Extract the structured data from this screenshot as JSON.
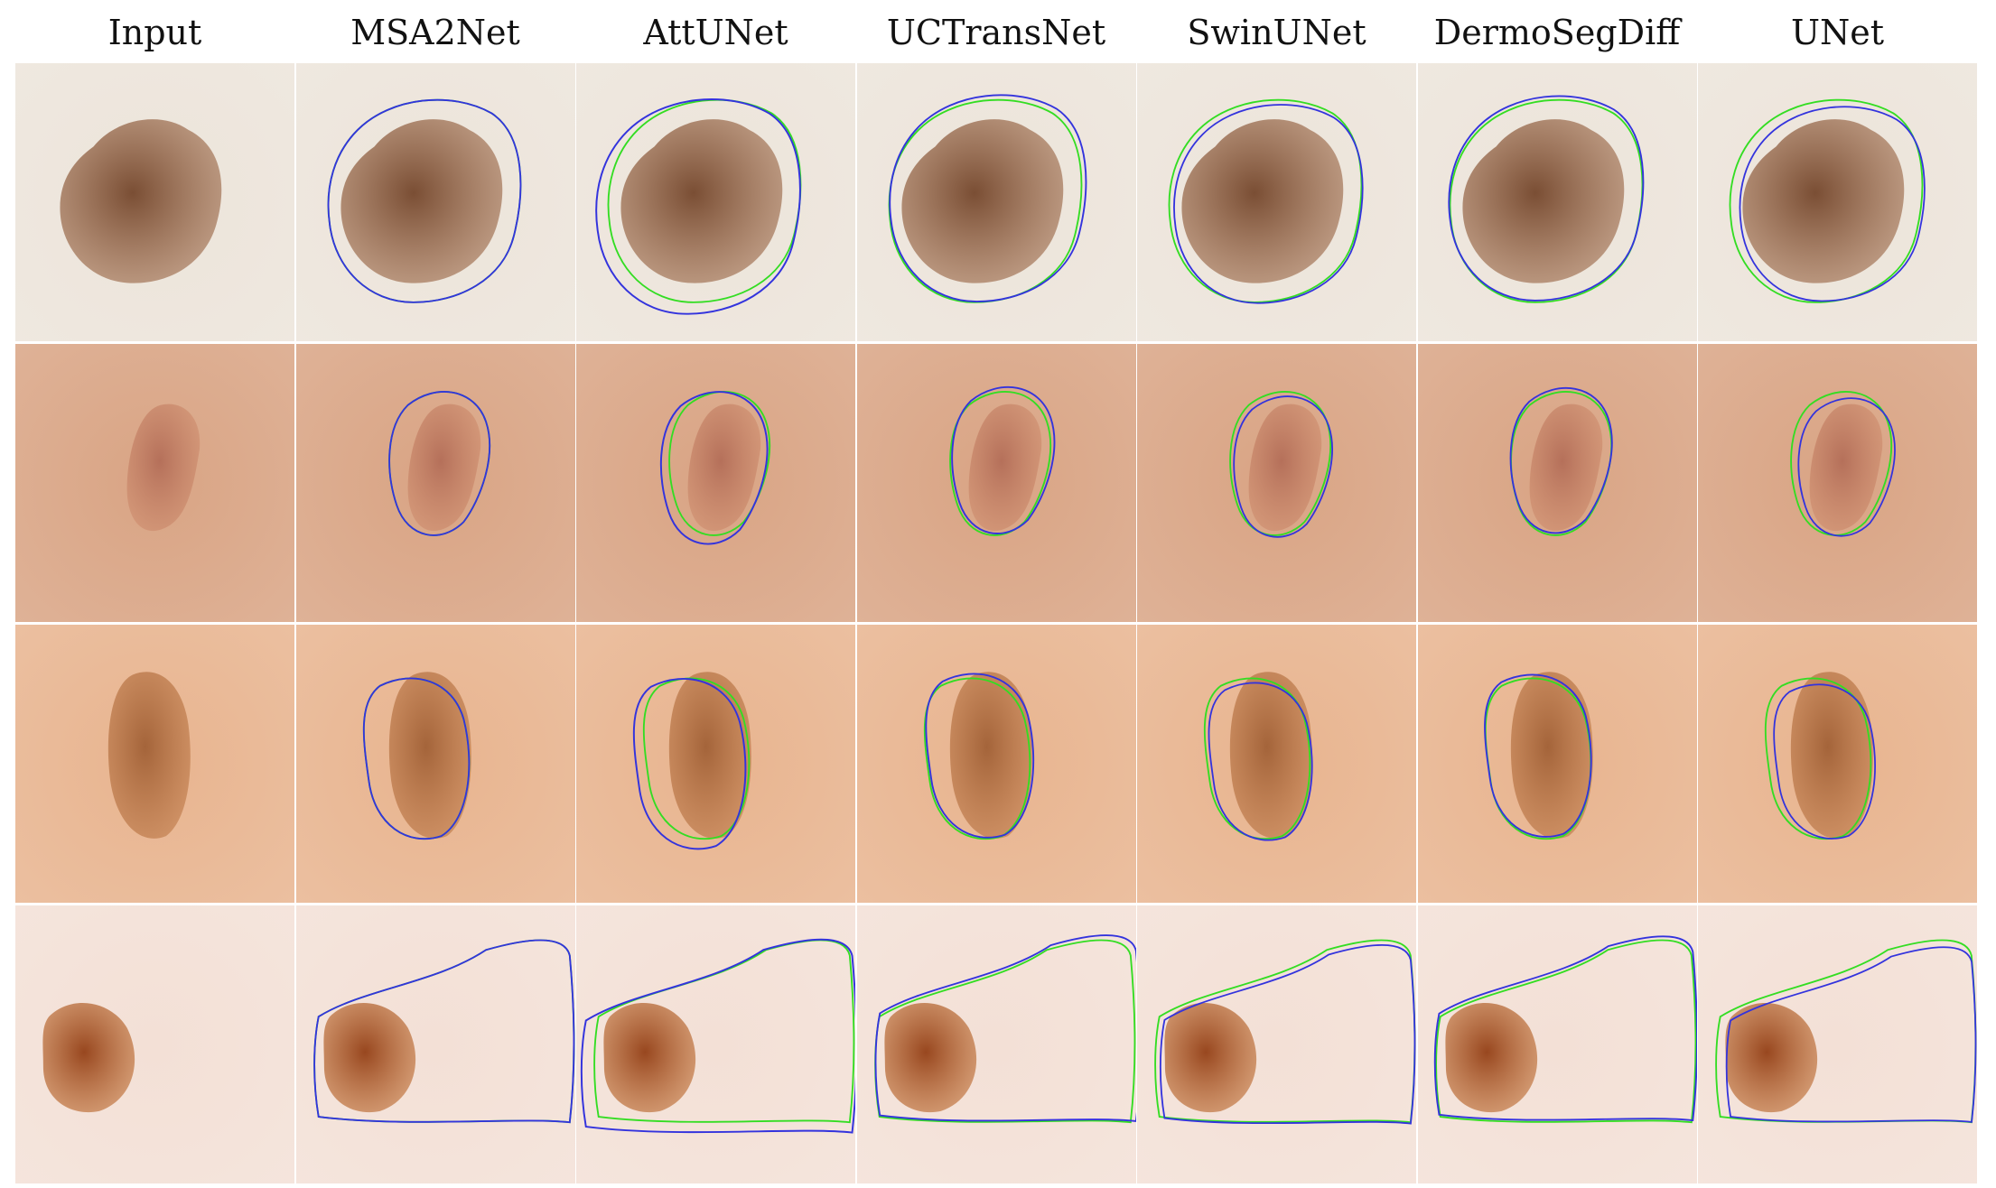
{
  "figure": {
    "columns": [
      {
        "id": "input",
        "title": "Input",
        "overlay": false
      },
      {
        "id": "msa2net",
        "title": "MSA2Net",
        "overlay": true
      },
      {
        "id": "attunet",
        "title": "AttUNet",
        "overlay": true
      },
      {
        "id": "uctransnet",
        "title": "UCTransNet",
        "overlay": true
      },
      {
        "id": "swinunet",
        "title": "SwinUNet",
        "overlay": true
      },
      {
        "id": "dermosegdiff",
        "title": "DermoSegDiff",
        "overlay": true
      },
      {
        "id": "unet",
        "title": "UNet",
        "overlay": true
      }
    ],
    "rows": [
      {
        "id": "sample-1",
        "skin_color": "#ece4da",
        "lesion_color": "#a87a5c",
        "lesion_dark": "#7a4e34"
      },
      {
        "id": "sample-2",
        "skin_color": "#d9a484",
        "lesion_color": "#cf8f70",
        "lesion_dark": "#b5705a"
      },
      {
        "id": "sample-3",
        "skin_color": "#e8b48f",
        "lesion_color": "#c27f4f",
        "lesion_dark": "#a4643a"
      },
      {
        "id": "sample-4",
        "skin_color": "#f3e0d6",
        "lesion_color": "#c47a45",
        "lesion_dark": "#98471f"
      }
    ],
    "contour_colors": {
      "ground_truth": "#33dd22",
      "prediction": "#3333dd"
    }
  }
}
